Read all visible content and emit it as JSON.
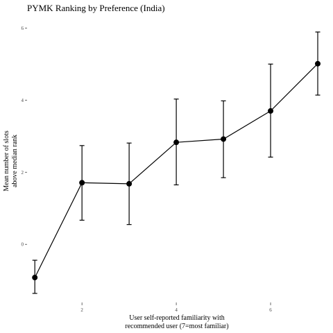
{
  "chart_data": {
    "type": "line",
    "title": "PYMK Ranking by Preference (India)",
    "xlabel": [
      "User self-reported familiarity with",
      "recommended user (7=most familiar)"
    ],
    "ylabel": [
      "Mean number of slots",
      "above median rank"
    ],
    "x_ticks": [
      2,
      4,
      6
    ],
    "y_ticks": [
      0,
      2,
      4,
      6
    ],
    "xlim": [
      0.85,
      7.25
    ],
    "ylim": [
      -1.4,
      6.2
    ],
    "grid": false,
    "legend": "none",
    "colors": {
      "line": "#000000",
      "point": "#000000",
      "errorbar": "#000000"
    },
    "series": [
      {
        "x": [
          1,
          2,
          3,
          4,
          5,
          6,
          7
        ],
        "y": [
          -0.92,
          1.71,
          1.68,
          2.83,
          2.92,
          3.7,
          5.01
        ],
        "lower": [
          -1.36,
          0.67,
          0.55,
          1.65,
          1.85,
          2.42,
          4.14
        ],
        "upper": [
          -0.44,
          2.74,
          2.81,
          4.03,
          3.98,
          5.0,
          5.89
        ]
      }
    ]
  }
}
